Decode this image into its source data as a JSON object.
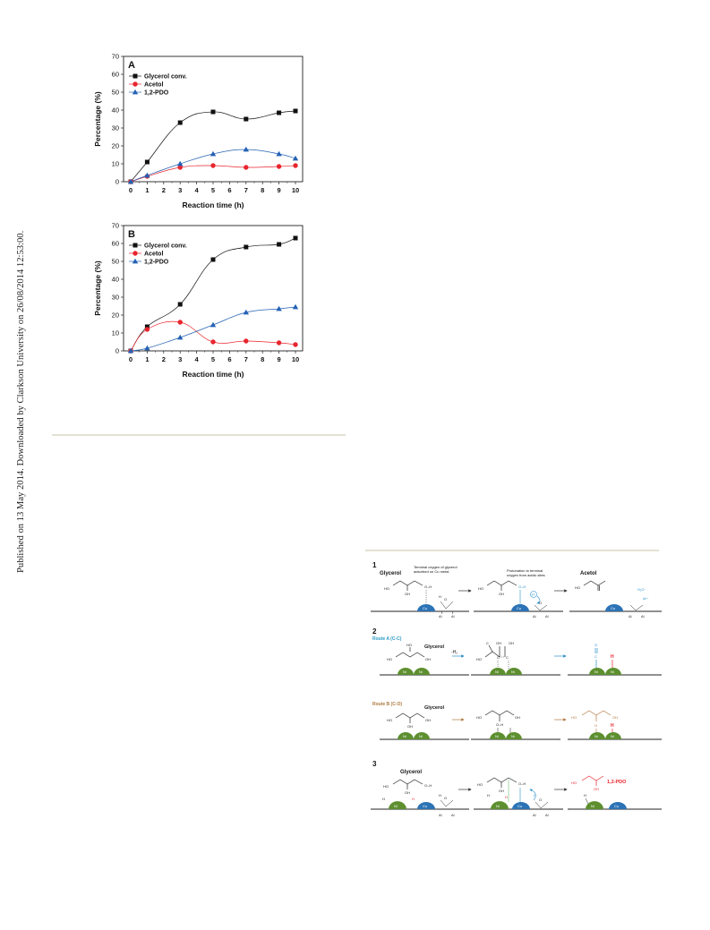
{
  "sidebar": {
    "published_text": "Published on 13 May 2014. Downloaded by Clarkson University on 26/08/2014 12:53:00."
  },
  "charts": {
    "colors": {
      "glycerol": "#111111",
      "acetol": "#e8252d",
      "pdo": "#2461b5"
    }
  },
  "chart_data": [
    {
      "type": "line",
      "panel_label": "A",
      "xlabel": "Reaction time (h)",
      "ylabel": "Percentage (%)",
      "xlim": [
        0,
        10
      ],
      "ylim": [
        0,
        70
      ],
      "xticks": [
        0,
        1,
        2,
        3,
        4,
        5,
        6,
        7,
        8,
        9,
        10
      ],
      "yticks": [
        0,
        10,
        20,
        30,
        40,
        50,
        60,
        70
      ],
      "legend_position": "top-left",
      "grid": false,
      "series": [
        {
          "name": "Glycerol conv.",
          "marker": "square",
          "color": "#111111",
          "x": [
            0,
            1,
            3,
            5,
            7,
            9,
            10
          ],
          "y": [
            0,
            11,
            33,
            39,
            35,
            38.5,
            39.5
          ]
        },
        {
          "name": "Acetol",
          "marker": "circle",
          "color": "#e8252d",
          "x": [
            0,
            1,
            3,
            5,
            7,
            9,
            10
          ],
          "y": [
            0,
            3,
            8,
            9,
            8,
            8.5,
            9
          ]
        },
        {
          "name": "1,2-PDO",
          "marker": "triangle",
          "color": "#2461b5",
          "x": [
            0,
            1,
            3,
            5,
            7,
            9,
            10
          ],
          "y": [
            0,
            3.5,
            10,
            15.5,
            18,
            15.5,
            13
          ]
        }
      ]
    },
    {
      "type": "line",
      "panel_label": "B",
      "xlabel": "Reaction time (h)",
      "ylabel": "Percentage (%)",
      "xlim": [
        0,
        10
      ],
      "ylim": [
        0,
        70
      ],
      "xticks": [
        0,
        1,
        2,
        3,
        4,
        5,
        6,
        7,
        8,
        9,
        10
      ],
      "yticks": [
        0,
        10,
        20,
        30,
        40,
        50,
        60,
        70
      ],
      "legend_position": "top-left",
      "grid": false,
      "series": [
        {
          "name": "Glycerol conv.",
          "marker": "square",
          "color": "#111111",
          "x": [
            0,
            1,
            3,
            5,
            7,
            9,
            10
          ],
          "y": [
            0,
            13.5,
            26,
            51,
            58,
            59.5,
            63
          ]
        },
        {
          "name": "Acetol",
          "marker": "circle",
          "color": "#e8252d",
          "x": [
            0,
            1,
            3,
            5,
            7,
            9,
            10
          ],
          "y": [
            0,
            12,
            16,
            5,
            5.5,
            4.5,
            3.5
          ]
        },
        {
          "name": "1,2-PDO",
          "marker": "triangle",
          "color": "#2461b5",
          "x": [
            0,
            1,
            3,
            5,
            7,
            9,
            10
          ],
          "y": [
            0,
            1.5,
            7.5,
            14.5,
            21.5,
            23.5,
            24.5
          ]
        }
      ]
    }
  ],
  "scheme": {
    "step1": {
      "number": "1",
      "glycerol": "Glycerol",
      "note1_line1": "Terminal oxygen of glycerol",
      "note1_line2": "adsorbed on Cu metal",
      "note2_line1": "Protonation to terminal",
      "note2_line2": "oxygen from acidic sites",
      "acetol": "Acetol",
      "ho": "HO",
      "oh": "OH",
      "oh_h": "O–H",
      "h": "H",
      "o": "O",
      "al": "Al",
      "cu": "Cu",
      "h2o": "H₂O",
      "h_plus": "H⁺",
      "al_plus": "Al³⁺"
    },
    "step2": {
      "number": "2",
      "route_a": "Route A (C-C)",
      "route_b": "Route B (C-O)",
      "glycerol": "Glycerol",
      "minus_h2": "-H₂",
      "ni": "Ni",
      "c": "C",
      "o": "O",
      "h": "H",
      "ho": "HO",
      "oh": "OH",
      "oh_h": "O–H"
    },
    "step3": {
      "number": "3",
      "glycerol": "Glycerol",
      "product": "1,2-PDO",
      "ho": "HO",
      "oh": "OH",
      "oh_h": "O–H",
      "h": "H",
      "ni": "Ni",
      "cu": "Cu",
      "al": "Al",
      "o": "O"
    }
  }
}
